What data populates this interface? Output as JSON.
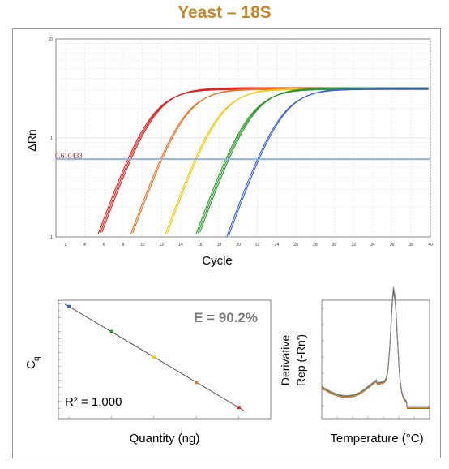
{
  "title": "Yeast – 18S",
  "chart_data": [
    {
      "type": "line",
      "name": "amplification-plot",
      "xlabel": "Cycle",
      "ylabel": "ΔRn",
      "yscale": "log",
      "xlim": [
        1,
        40
      ],
      "ylim": [
        0.1,
        10
      ],
      "x_ticks": [
        "2",
        "4",
        "6",
        "8",
        "10",
        "12",
        "14",
        "16",
        "18",
        "20",
        "22",
        "24",
        "26",
        "28",
        "30",
        "32",
        "34",
        "36",
        "38",
        "40"
      ],
      "y_ticks": [
        "10",
        "1",
        ".1"
      ],
      "threshold": {
        "value": 0.610433,
        "label": "0.610433",
        "color": "#8fb6e0"
      },
      "plateau": 3.1,
      "series": [
        {
          "color": "#e02020",
          "threshold_cycles": [
            8.5,
            8.7,
            8.9
          ]
        },
        {
          "color": "#f07020",
          "threshold_cycles": [
            11.9,
            12.1
          ]
        },
        {
          "color": "#f5c800",
          "threshold_cycles": [
            15.5,
            15.7
          ]
        },
        {
          "color": "#2a9a2a",
          "threshold_cycles": [
            18.7,
            18.9,
            19.1
          ]
        },
        {
          "color": "#3a5fd0",
          "threshold_cycles": [
            22.0,
            22.2
          ]
        }
      ],
      "grid": true
    },
    {
      "type": "scatter",
      "name": "standard-curve",
      "xlabel": "Quantity (ng)",
      "ylabel": "Cq",
      "xscale": "log",
      "efficiency": "E = 90.2%",
      "r2": "R² = 1.000",
      "points": [
        {
          "x": 0.0001,
          "y": 29.6,
          "color": "#3a5fd0"
        },
        {
          "x": 0.001,
          "y": 26.0,
          "color": "#2a9a2a"
        },
        {
          "x": 0.01,
          "y": 22.3,
          "color": "#f5c800"
        },
        {
          "x": 0.1,
          "y": 18.7,
          "color": "#f07020"
        },
        {
          "x": 1,
          "y": 15.1,
          "color": "#e02020"
        }
      ]
    },
    {
      "type": "line",
      "name": "melt-curve",
      "xlabel": "Temperature (°C)",
      "ylabel": "Derivative Rep (-Rn')",
      "peak_temperature": 83.5,
      "series_colors": [
        "#e02020",
        "#f07020",
        "#f5c800",
        "#2a9a2a",
        "#3a5fd0",
        "#888888"
      ]
    }
  ]
}
